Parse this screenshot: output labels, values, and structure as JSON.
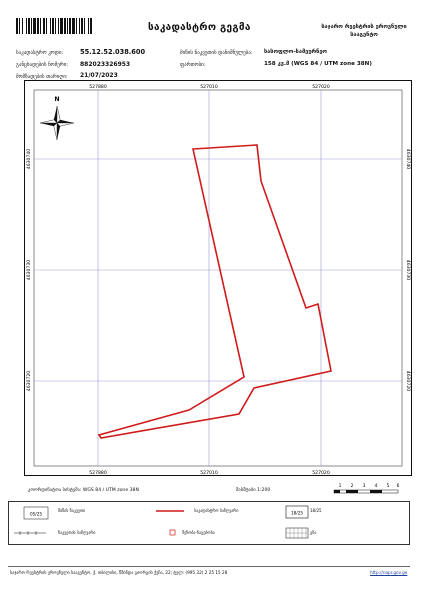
{
  "header": {
    "title": "საკადასტრო გეგმა",
    "agency": "საჯარო რეესტრის ეროვნული სააგენტო",
    "cadastral_code_label": "საკადასტრო კოდი:",
    "cadastral_code": "55.12.52.038.600",
    "application_number_label": "განცხადების ნომერი:",
    "application_number": "882023326953",
    "date_label": "მომზადების თარიღი:",
    "date": "21/07/2023",
    "land_purpose_label": "მიწის ნაკვეთის დანიშნულება:",
    "land_purpose": "სასოფლო-სამეურნეო",
    "area_label": "ფართობი:",
    "area": "158 კვ.მ (WGS 84 / UTM zone 38N)"
  },
  "map": {
    "x_ticks": [
      "527880",
      "527010",
      "527020"
    ],
    "y_ticks": [
      "4630740",
      "4630730",
      "4630720"
    ],
    "parcel_outline_color": "#d11a1a",
    "grid_color": "#9a9ad8",
    "north_label": "N"
  },
  "bottom": {
    "crs": "კოორდინატთა სისტემა: WGS 84 / UTM zone 38N",
    "scale": "მასშტაბი 1:200",
    "scalebar_ticks": [
      "1",
      "2",
      "3",
      "4",
      "5",
      "6"
    ]
  },
  "legend": {
    "items": [
      {
        "label": "მიწის ნაკვეთი",
        "symbol": "05/25"
      },
      {
        "label": "საკადასტრო საზღვარი",
        "symbol": "red-line"
      },
      {
        "label": "18/25",
        "symbol": "18/25"
      },
      {
        "label": "ნაკვეთის საზღვარი",
        "symbol": "dashed"
      },
      {
        "label": "შენობა-ნაგებობა",
        "symbol": "square"
      },
      {
        "label": "გზა",
        "symbol": "crosshatch"
      }
    ]
  },
  "footer": {
    "address": "საჯარო რეესტრის ეროვნული სააგენტო, ქ. თბილისი, წმინდა გიორგის ქუჩა, 22; ტელ: (995 32) 2 25 15 28",
    "website": "http://napr.gov.ge"
  }
}
